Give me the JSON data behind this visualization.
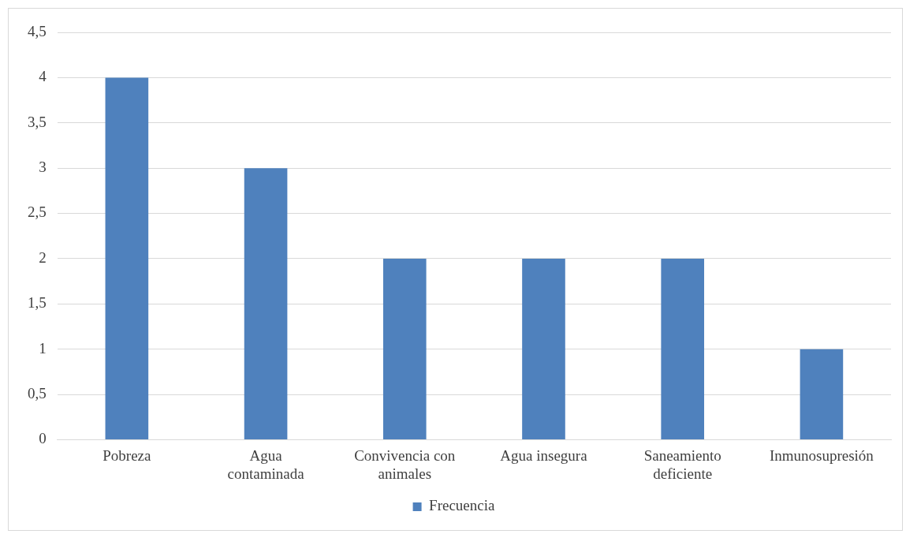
{
  "chart_data": {
    "type": "bar",
    "categories": [
      "Pobreza",
      "Agua contaminada",
      "Convivencia con animales",
      "Agua insegura",
      "Saneamiento deficiente",
      "Inmunosupresión"
    ],
    "series": [
      {
        "name": "Frecuencia",
        "color": "#4f81bd",
        "values": [
          4,
          3,
          2,
          2,
          2,
          1
        ]
      }
    ],
    "ylim": [
      0,
      4.5
    ],
    "yticks": [
      0,
      {
        "value": 0.5,
        "label": "0,5"
      },
      1,
      {
        "value": 1.5,
        "label": "1,5"
      },
      2,
      {
        "value": 2.5,
        "label": "2,5"
      },
      3,
      {
        "value": 3.5,
        "label": "3,5"
      },
      4,
      {
        "value": 4.5,
        "label": "4,5"
      }
    ],
    "grid": "y",
    "legend": "bottom"
  }
}
